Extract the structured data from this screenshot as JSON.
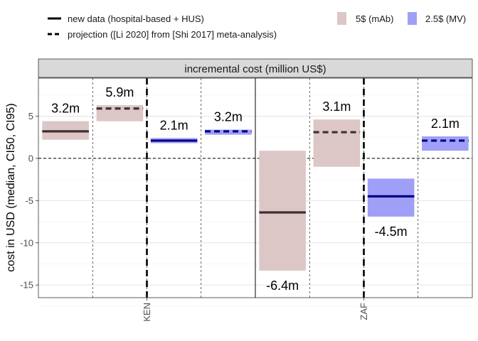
{
  "chart_data": {
    "type": "bar",
    "title": "",
    "facet_label": "incremental cost (million US$)",
    "ylabel": "cost in USD (median, CI50, CI95)",
    "xlabel": "",
    "ylim": [
      -16.5,
      9.5
    ],
    "yticks": [
      -15,
      -10,
      -5,
      0,
      5
    ],
    "categories": [
      "KEN",
      "ZAF"
    ],
    "legend": {
      "lines": [
        {
          "label": "new data (hospital-based + HUS)",
          "style": "solid"
        },
        {
          "label": "projection ([Li 2020] from [Shi 2017] meta-analysis)",
          "style": "dashed"
        }
      ],
      "fills": [
        {
          "label": "5$ (mAb)",
          "color": "#dcc6c6"
        },
        {
          "label": "2.5$ (MV)",
          "color": "#9f9ff8"
        }
      ]
    },
    "series": [
      {
        "country": "KEN",
        "product": "5$ (mAb)",
        "source": "new data",
        "median": 3.2,
        "lo": 2.2,
        "hi": 4.4,
        "label": "3.2m"
      },
      {
        "country": "KEN",
        "product": "5$ (mAb)",
        "source": "projection",
        "median": 5.9,
        "lo": 4.4,
        "hi": 6.3,
        "label": "5.9m"
      },
      {
        "country": "KEN",
        "product": "2.5$ (MV)",
        "source": "new data",
        "median": 2.1,
        "lo": 1.8,
        "hi": 2.4,
        "label": "2.1m"
      },
      {
        "country": "KEN",
        "product": "2.5$ (MV)",
        "source": "projection",
        "median": 3.2,
        "lo": 2.8,
        "hi": 3.4,
        "label": "3.2m"
      },
      {
        "country": "ZAF",
        "product": "5$ (mAb)",
        "source": "new data",
        "median": -6.4,
        "lo": -13.3,
        "hi": 0.9,
        "label": "-6.4m"
      },
      {
        "country": "ZAF",
        "product": "5$ (mAb)",
        "source": "projection",
        "median": 3.1,
        "lo": -1.0,
        "hi": 4.6,
        "label": "3.1m"
      },
      {
        "country": "ZAF",
        "product": "2.5$ (MV)",
        "source": "new data",
        "median": -4.5,
        "lo": -6.9,
        "hi": -2.4,
        "label": "-4.5m"
      },
      {
        "country": "ZAF",
        "product": "2.5$ (MV)",
        "source": "projection",
        "median": 2.1,
        "lo": 0.9,
        "hi": 2.6,
        "label": "2.1m"
      }
    ]
  }
}
